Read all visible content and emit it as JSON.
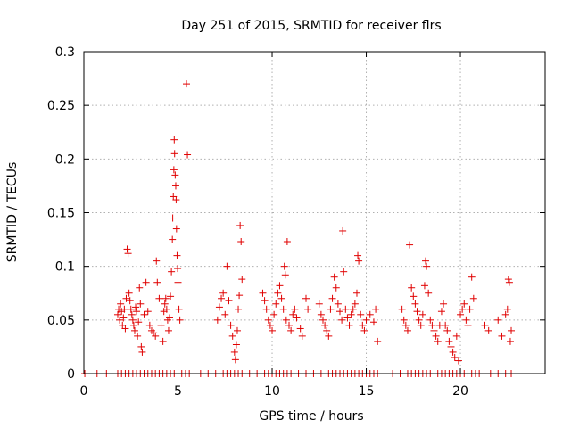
{
  "chart_data": {
    "type": "scatter",
    "title": "Day 251 of 2015, SRMTID for receiver flrs",
    "xlabel": "GPS time / hours",
    "ylabel": "SRMTID / TECUs",
    "xlim": [
      0,
      24.5
    ],
    "ylim": [
      0,
      0.3
    ],
    "xticks": [
      0,
      5,
      10,
      15,
      20
    ],
    "xtick_labels": [
      "0",
      "5",
      "10",
      "15",
      "20"
    ],
    "yticks": [
      0,
      0.05,
      0.1,
      0.15,
      0.2,
      0.25,
      0.3
    ],
    "ytick_labels": [
      "0",
      "0.05",
      "0.1",
      "0.15",
      "0.2",
      "0.25",
      "0.3"
    ],
    "grid": true,
    "marker": "+",
    "color": "#e00000",
    "zero_points_x": [
      0.05,
      0.7,
      1.2,
      1.8,
      2.0,
      2.2,
      2.4,
      2.6,
      2.8,
      3.0,
      3.2,
      3.4,
      3.6,
      3.8,
      4.0,
      4.2,
      4.4,
      4.6,
      4.8,
      5.0,
      5.2,
      5.4,
      5.6,
      6.2,
      6.6,
      7.0,
      7.4,
      7.6,
      7.8,
      8.0,
      8.2,
      8.4,
      8.8,
      9.2,
      9.6,
      9.8,
      10.0,
      10.2,
      10.4,
      10.6,
      10.8,
      11.0,
      11.4,
      11.8,
      12.2,
      12.6,
      13.0,
      13.2,
      13.4,
      13.6,
      13.8,
      14.0,
      14.2,
      14.4,
      14.6,
      14.8,
      15.0,
      15.2,
      15.4,
      15.6,
      16.4,
      16.8,
      17.2,
      17.4,
      17.6,
      17.8,
      18.0,
      18.2,
      18.4,
      18.6,
      18.8,
      19.0,
      19.2,
      19.4,
      19.6,
      19.8,
      20.0,
      20.2,
      20.4,
      20.6,
      20.8,
      21.0,
      21.6,
      22.0,
      22.4,
      22.7
    ],
    "points": [
      [
        1.8,
        0.055
      ],
      [
        1.85,
        0.06
      ],
      [
        1.9,
        0.05
      ],
      [
        1.95,
        0.065
      ],
      [
        2.0,
        0.058
      ],
      [
        2.05,
        0.045
      ],
      [
        2.1,
        0.052
      ],
      [
        2.15,
        0.06
      ],
      [
        2.2,
        0.042
      ],
      [
        2.25,
        0.07
      ],
      [
        2.3,
        0.116
      ],
      [
        2.35,
        0.112
      ],
      [
        2.4,
        0.075
      ],
      [
        2.45,
        0.068
      ],
      [
        2.5,
        0.06
      ],
      [
        2.55,
        0.055
      ],
      [
        2.6,
        0.05
      ],
      [
        2.65,
        0.045
      ],
      [
        2.7,
        0.04
      ],
      [
        2.75,
        0.062
      ],
      [
        2.8,
        0.058
      ],
      [
        2.85,
        0.035
      ],
      [
        2.9,
        0.048
      ],
      [
        2.95,
        0.08
      ],
      [
        3.0,
        0.065
      ],
      [
        3.05,
        0.025
      ],
      [
        3.1,
        0.02
      ],
      [
        3.2,
        0.055
      ],
      [
        3.3,
        0.085
      ],
      [
        3.4,
        0.058
      ],
      [
        3.5,
        0.045
      ],
      [
        3.6,
        0.04
      ],
      [
        3.7,
        0.038
      ],
      [
        3.8,
        0.035
      ],
      [
        3.85,
        0.105
      ],
      [
        3.9,
        0.085
      ],
      [
        4.0,
        0.07
      ],
      [
        4.1,
        0.045
      ],
      [
        4.2,
        0.03
      ],
      [
        4.25,
        0.058
      ],
      [
        4.3,
        0.065
      ],
      [
        4.35,
        0.07
      ],
      [
        4.4,
        0.06
      ],
      [
        4.45,
        0.05
      ],
      [
        4.5,
        0.04
      ],
      [
        4.55,
        0.052
      ],
      [
        4.6,
        0.072
      ],
      [
        4.65,
        0.095
      ],
      [
        4.7,
        0.125
      ],
      [
        4.72,
        0.145
      ],
      [
        4.75,
        0.165
      ],
      [
        4.78,
        0.19
      ],
      [
        4.8,
        0.218
      ],
      [
        4.82,
        0.205
      ],
      [
        4.85,
        0.185
      ],
      [
        4.88,
        0.175
      ],
      [
        4.9,
        0.162
      ],
      [
        4.92,
        0.135
      ],
      [
        4.95,
        0.11
      ],
      [
        4.98,
        0.098
      ],
      [
        5.0,
        0.085
      ],
      [
        5.05,
        0.06
      ],
      [
        5.1,
        0.05
      ],
      [
        5.45,
        0.27
      ],
      [
        5.5,
        0.204
      ],
      [
        7.1,
        0.05
      ],
      [
        7.2,
        0.062
      ],
      [
        7.3,
        0.07
      ],
      [
        7.4,
        0.075
      ],
      [
        7.5,
        0.055
      ],
      [
        7.6,
        0.1
      ],
      [
        7.7,
        0.068
      ],
      [
        7.8,
        0.045
      ],
      [
        7.9,
        0.035
      ],
      [
        8.0,
        0.02
      ],
      [
        8.05,
        0.013
      ],
      [
        8.1,
        0.027
      ],
      [
        8.15,
        0.04
      ],
      [
        8.2,
        0.06
      ],
      [
        8.25,
        0.073
      ],
      [
        8.3,
        0.138
      ],
      [
        8.35,
        0.123
      ],
      [
        8.4,
        0.088
      ],
      [
        9.5,
        0.075
      ],
      [
        9.6,
        0.068
      ],
      [
        9.7,
        0.06
      ],
      [
        9.8,
        0.05
      ],
      [
        9.9,
        0.045
      ],
      [
        10.0,
        0.04
      ],
      [
        10.1,
        0.055
      ],
      [
        10.2,
        0.065
      ],
      [
        10.3,
        0.075
      ],
      [
        10.4,
        0.082
      ],
      [
        10.5,
        0.07
      ],
      [
        10.6,
        0.06
      ],
      [
        10.65,
        0.1
      ],
      [
        10.7,
        0.092
      ],
      [
        10.75,
        0.05
      ],
      [
        10.8,
        0.123
      ],
      [
        10.9,
        0.045
      ],
      [
        11.0,
        0.04
      ],
      [
        11.1,
        0.055
      ],
      [
        11.2,
        0.06
      ],
      [
        11.3,
        0.052
      ],
      [
        11.5,
        0.042
      ],
      [
        11.6,
        0.035
      ],
      [
        11.8,
        0.07
      ],
      [
        11.9,
        0.06
      ],
      [
        12.5,
        0.065
      ],
      [
        12.6,
        0.055
      ],
      [
        12.7,
        0.05
      ],
      [
        12.8,
        0.045
      ],
      [
        12.9,
        0.04
      ],
      [
        13.0,
        0.035
      ],
      [
        13.1,
        0.06
      ],
      [
        13.2,
        0.07
      ],
      [
        13.3,
        0.09
      ],
      [
        13.4,
        0.08
      ],
      [
        13.5,
        0.065
      ],
      [
        13.6,
        0.058
      ],
      [
        13.7,
        0.05
      ],
      [
        13.75,
        0.133
      ],
      [
        13.8,
        0.095
      ],
      [
        13.9,
        0.06
      ],
      [
        14.0,
        0.052
      ],
      [
        14.1,
        0.045
      ],
      [
        14.2,
        0.055
      ],
      [
        14.3,
        0.06
      ],
      [
        14.4,
        0.065
      ],
      [
        14.5,
        0.075
      ],
      [
        14.55,
        0.11
      ],
      [
        14.6,
        0.105
      ],
      [
        14.7,
        0.055
      ],
      [
        14.8,
        0.045
      ],
      [
        14.9,
        0.04
      ],
      [
        15.0,
        0.05
      ],
      [
        15.2,
        0.055
      ],
      [
        15.4,
        0.048
      ],
      [
        15.5,
        0.06
      ],
      [
        15.6,
        0.03
      ],
      [
        16.9,
        0.06
      ],
      [
        17.0,
        0.05
      ],
      [
        17.1,
        0.045
      ],
      [
        17.2,
        0.04
      ],
      [
        17.3,
        0.12
      ],
      [
        17.4,
        0.08
      ],
      [
        17.5,
        0.072
      ],
      [
        17.6,
        0.065
      ],
      [
        17.7,
        0.058
      ],
      [
        17.8,
        0.05
      ],
      [
        17.9,
        0.045
      ],
      [
        18.0,
        0.055
      ],
      [
        18.1,
        0.082
      ],
      [
        18.15,
        0.105
      ],
      [
        18.2,
        0.1
      ],
      [
        18.3,
        0.075
      ],
      [
        18.4,
        0.05
      ],
      [
        18.5,
        0.045
      ],
      [
        18.6,
        0.04
      ],
      [
        18.7,
        0.035
      ],
      [
        18.8,
        0.03
      ],
      [
        18.9,
        0.045
      ],
      [
        19.0,
        0.058
      ],
      [
        19.1,
        0.065
      ],
      [
        19.2,
        0.045
      ],
      [
        19.3,
        0.04
      ],
      [
        19.4,
        0.03
      ],
      [
        19.5,
        0.025
      ],
      [
        19.6,
        0.02
      ],
      [
        19.7,
        0.015
      ],
      [
        19.8,
        0.035
      ],
      [
        19.9,
        0.012
      ],
      [
        20.0,
        0.055
      ],
      [
        20.1,
        0.06
      ],
      [
        20.2,
        0.065
      ],
      [
        20.3,
        0.05
      ],
      [
        20.4,
        0.045
      ],
      [
        20.5,
        0.06
      ],
      [
        20.6,
        0.09
      ],
      [
        20.7,
        0.07
      ],
      [
        21.3,
        0.045
      ],
      [
        21.5,
        0.04
      ],
      [
        22.0,
        0.05
      ],
      [
        22.2,
        0.035
      ],
      [
        22.4,
        0.055
      ],
      [
        22.5,
        0.06
      ],
      [
        22.55,
        0.088
      ],
      [
        22.6,
        0.085
      ],
      [
        22.65,
        0.03
      ],
      [
        22.7,
        0.04
      ]
    ]
  }
}
